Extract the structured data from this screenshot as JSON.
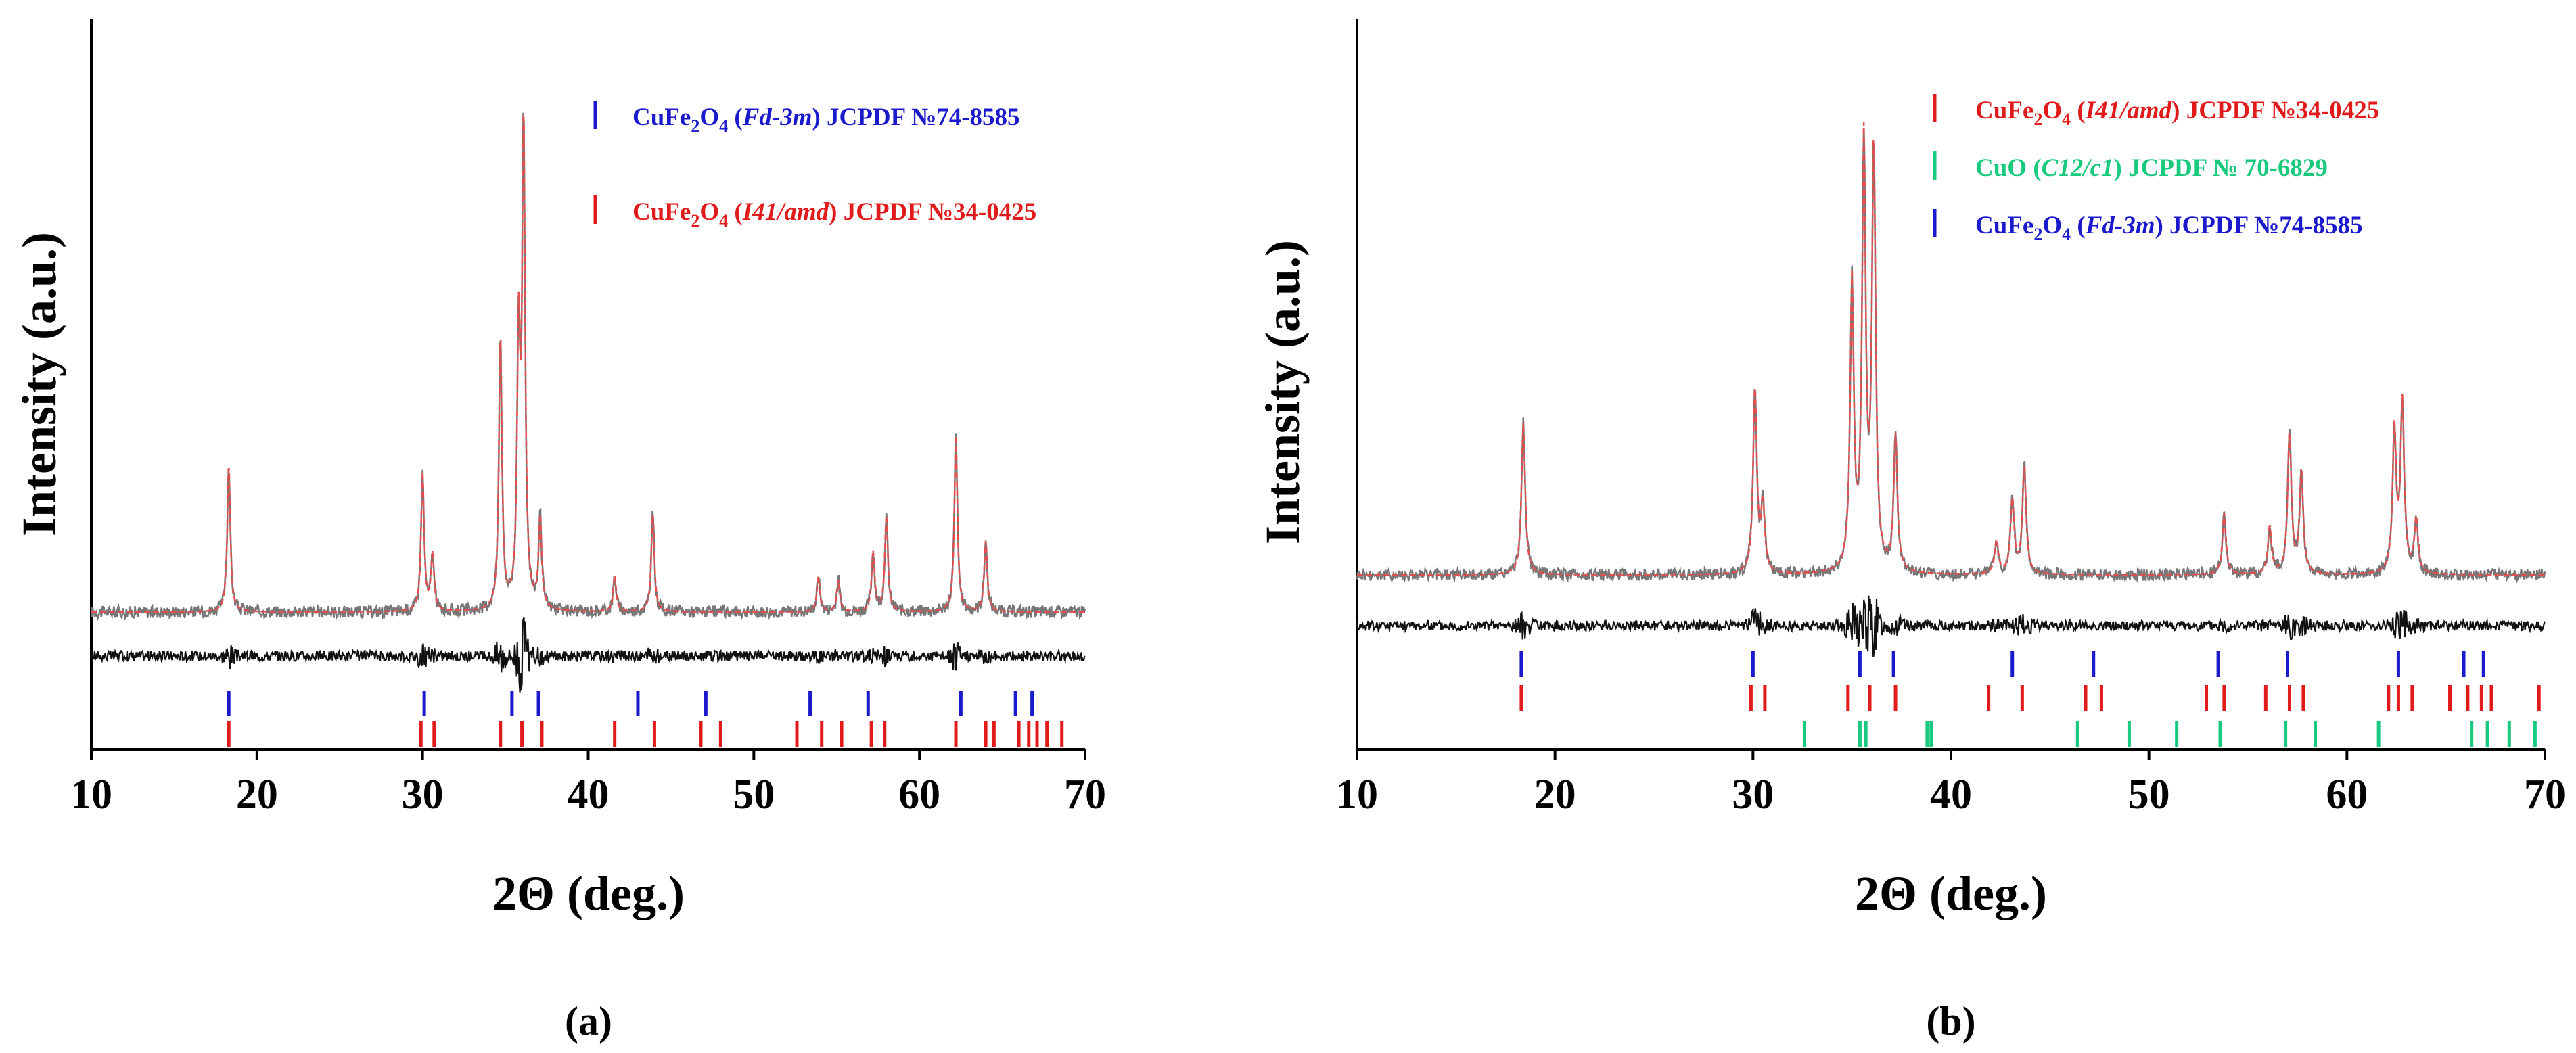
{
  "colors": {
    "observed": "#777777",
    "calculated": "#e05050",
    "difference": "#111111",
    "red": "#e11b1b",
    "blue": "#1a1acc",
    "green": "#19c97d"
  },
  "chart_data": [
    {
      "type": "line",
      "panel_label": "(a)",
      "xlabel": "2Θ (deg.)",
      "ylabel": "Intensity (a.u.)",
      "xlim": [
        10,
        70
      ],
      "xticks": [
        10,
        20,
        30,
        40,
        50,
        60,
        70
      ],
      "xtick_labels": [
        "10",
        "20",
        "30",
        "40",
        "50",
        "60",
        "70"
      ],
      "grid": false,
      "legend_position": "top-right",
      "baseline": 0.0,
      "difference_offset": -0.14,
      "peaks": [
        {
          "x": 18.3,
          "h": 0.42
        },
        {
          "x": 30.0,
          "h": 0.39
        },
        {
          "x": 30.6,
          "h": 0.16
        },
        {
          "x": 34.7,
          "h": 0.78
        },
        {
          "x": 35.8,
          "h": 0.74
        },
        {
          "x": 36.1,
          "h": 1.35
        },
        {
          "x": 37.1,
          "h": 0.26
        },
        {
          "x": 41.6,
          "h": 0.1
        },
        {
          "x": 43.9,
          "h": 0.28
        },
        {
          "x": 53.9,
          "h": 0.1
        },
        {
          "x": 55.1,
          "h": 0.09
        },
        {
          "x": 57.2,
          "h": 0.17
        },
        {
          "x": 58.0,
          "h": 0.27
        },
        {
          "x": 62.2,
          "h": 0.5
        },
        {
          "x": 64.0,
          "h": 0.2
        }
      ],
      "legend": [
        {
          "formula": "CuFe",
          "sub1": "2",
          "mid": "O",
          "sub2": "4",
          "group": "Fd-3m",
          "ref": "JCPDF №74-8585",
          "color_key": "blue"
        },
        {
          "formula": "CuFe",
          "sub1": "2",
          "mid": "O",
          "sub2": "4",
          "group": "I41/amd",
          "ref": "JCPDF №34-0425",
          "color_key": "red"
        }
      ],
      "tick_rows": [
        {
          "color_key": "blue",
          "positions": [
            18.3,
            30.1,
            35.4,
            37.0,
            43.0,
            47.1,
            53.4,
            56.9,
            62.5,
            65.8,
            66.8
          ]
        },
        {
          "color_key": "red",
          "positions": [
            18.3,
            29.9,
            30.7,
            34.7,
            36.0,
            37.2,
            41.6,
            44.0,
            46.8,
            48.0,
            52.6,
            54.1,
            55.3,
            57.1,
            57.9,
            62.2,
            64.0,
            64.5,
            66.0,
            66.6,
            67.1,
            67.7,
            68.6
          ]
        }
      ]
    },
    {
      "type": "line",
      "panel_label": "(b)",
      "xlabel": "2Θ (deg.)",
      "ylabel": "Intensity (a.u.)",
      "xlim": [
        10,
        70
      ],
      "xticks": [
        10,
        20,
        30,
        40,
        50,
        60,
        70
      ],
      "xtick_labels": [
        "10",
        "20",
        "30",
        "40",
        "50",
        "60",
        "70"
      ],
      "grid": false,
      "legend_position": "top-right",
      "baseline": 0.0,
      "difference_offset": -0.12,
      "peaks": [
        {
          "x": 18.4,
          "h": 0.45
        },
        {
          "x": 30.1,
          "h": 0.55
        },
        {
          "x": 30.5,
          "h": 0.2
        },
        {
          "x": 35.0,
          "h": 0.85
        },
        {
          "x": 35.6,
          "h": 1.25
        },
        {
          "x": 36.1,
          "h": 1.25
        },
        {
          "x": 37.2,
          "h": 0.4
        },
        {
          "x": 42.3,
          "h": 0.1
        },
        {
          "x": 43.1,
          "h": 0.22
        },
        {
          "x": 43.7,
          "h": 0.32
        },
        {
          "x": 53.8,
          "h": 0.18
        },
        {
          "x": 56.1,
          "h": 0.14
        },
        {
          "x": 57.1,
          "h": 0.42
        },
        {
          "x": 57.7,
          "h": 0.3
        },
        {
          "x": 62.4,
          "h": 0.42
        },
        {
          "x": 62.8,
          "h": 0.5
        },
        {
          "x": 63.5,
          "h": 0.16
        }
      ],
      "legend": [
        {
          "formula": "CuFe",
          "sub1": "2",
          "mid": "O",
          "sub2": "4",
          "group": "I41/amd",
          "ref": "JCPDF №34-0425",
          "color_key": "red"
        },
        {
          "formula": "CuO",
          "sub1": "",
          "mid": "",
          "sub2": "",
          "group": "C12/c1",
          "ref": "JCPDF № 70-6829",
          "color_key": "green"
        },
        {
          "formula": "CuFe",
          "sub1": "2",
          "mid": "O",
          "sub2": "4",
          "group": "Fd-3m",
          "ref": "JCPDF №74-8585",
          "color_key": "blue"
        }
      ],
      "tick_rows": [
        {
          "color_key": "blue",
          "positions": [
            18.3,
            30.0,
            35.4,
            37.1,
            43.1,
            47.2,
            53.5,
            57.0,
            62.6,
            65.9,
            66.9
          ]
        },
        {
          "color_key": "red",
          "positions": [
            18.3,
            29.9,
            30.6,
            34.8,
            35.9,
            37.2,
            41.9,
            43.6,
            46.8,
            47.6,
            52.9,
            53.8,
            55.9,
            57.1,
            57.8,
            62.1,
            62.6,
            63.3,
            65.2,
            66.1,
            66.8,
            67.3,
            69.7
          ]
        },
        {
          "color_key": "green",
          "positions": [
            32.6,
            35.4,
            35.7,
            38.8,
            39.0,
            46.4,
            49.0,
            51.4,
            53.6,
            56.9,
            58.4,
            61.6,
            66.3,
            67.1,
            68.2,
            69.5
          ]
        }
      ]
    }
  ]
}
